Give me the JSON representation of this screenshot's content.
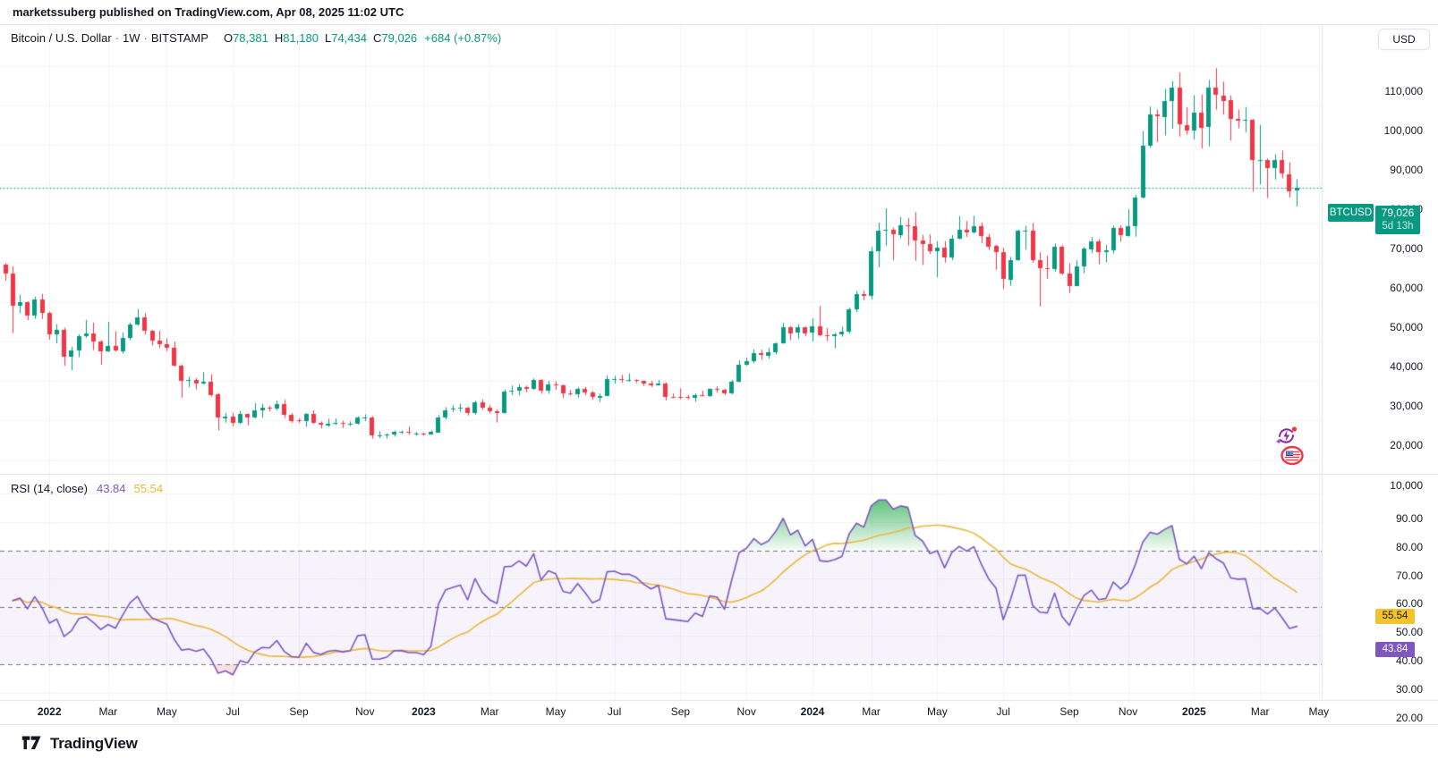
{
  "publish_bar": {
    "text": "marketssuberg published on TradingView.com, Apr 08, 2025 11:02 UTC"
  },
  "legend": {
    "symbol": "Bitcoin / U.S. Dollar",
    "separator": "·",
    "interval": "1W",
    "exchange": "BITSTAMP",
    "o_label": "O",
    "o_value": "78,381",
    "h_label": "H",
    "h_value": "81,180",
    "l_label": "L",
    "l_value": "74,434",
    "c_label": "C",
    "c_value": "79,026",
    "change": "+684 (+0.87%)"
  },
  "rsi_legend": {
    "title": "RSI (14, close)",
    "value": "43.84",
    "ma_value": "55.54"
  },
  "price_axis": {
    "currency_button": "USD",
    "tick_values": [
      110000,
      100000,
      90000,
      80000,
      70000,
      60000,
      50000,
      40000,
      30000,
      20000,
      10000
    ],
    "tick_labels": [
      "110,000",
      "100,000",
      "90,000",
      "80,000",
      "70,000",
      "60,000",
      "50,000",
      "40,000",
      "30,000",
      "20,000",
      "10,000"
    ],
    "symbol_tag": "BTCUSD",
    "last_price_label": "79,026",
    "countdown": "5d 13h"
  },
  "rsi_axis": {
    "tick_values": [
      90,
      80,
      70,
      60,
      50,
      40,
      30,
      20
    ],
    "tick_labels": [
      "90.00",
      "80.00",
      "70.00",
      "60.00",
      "50.00",
      "40.00",
      "30.00",
      "20.00"
    ],
    "value_badge": "43.84",
    "ma_badge": "55.54"
  },
  "time_axis": {
    "labels": [
      {
        "text": "2022",
        "week": 6,
        "year": true
      },
      {
        "text": "Mar",
        "week": 14
      },
      {
        "text": "May",
        "week": 22
      },
      {
        "text": "Jul",
        "week": 31
      },
      {
        "text": "Sep",
        "week": 40
      },
      {
        "text": "Nov",
        "week": 49
      },
      {
        "text": "2023",
        "week": 57,
        "year": true
      },
      {
        "text": "Mar",
        "week": 66
      },
      {
        "text": "May",
        "week": 75
      },
      {
        "text": "Jul",
        "week": 83
      },
      {
        "text": "Sep",
        "week": 92
      },
      {
        "text": "Nov",
        "week": 101
      },
      {
        "text": "2024",
        "week": 110,
        "year": true
      },
      {
        "text": "Mar",
        "week": 118
      },
      {
        "text": "May",
        "week": 127
      },
      {
        "text": "Jul",
        "week": 136
      },
      {
        "text": "Sep",
        "week": 145
      },
      {
        "text": "Nov",
        "week": 153
      },
      {
        "text": "2025",
        "week": 162,
        "year": true
      },
      {
        "text": "Mar",
        "week": 171
      },
      {
        "text": "May",
        "week": 179
      }
    ]
  },
  "footer": {
    "brand": "TradingView"
  },
  "colors": {
    "up": "#089981",
    "down": "#f23645",
    "text": "#131722",
    "border": "#e0e3eb",
    "grid": "#f0f3fa",
    "rsi_line": "#7e57c2",
    "rsi_ma_line": "#eab839",
    "rsi_band_fill": "rgba(126,87,194,0.07)",
    "band_dash": "#70737e",
    "overbought_fill": "#22ab48",
    "oversold_fill": "rgba(242,54,69,0.16)",
    "last_price_line": "#089981"
  },
  "chart_data": {
    "type": "candlestick",
    "title": "Bitcoin / U.S. Dollar",
    "symbol": "BTCUSD",
    "exchange": "BITSTAMP",
    "interval": "1W",
    "quote_currency": "USD",
    "start_week": "2021-11-22",
    "last_bar": {
      "open": 78381,
      "high": 81180,
      "low": 74434,
      "close": 79026,
      "change": "+684 (+0.87%)"
    },
    "y_axis_range": [
      10000,
      110000
    ],
    "grid": true,
    "candles_ohlc_thousands": [
      [
        59.6,
        59.8,
        55.6,
        57.3
      ],
      [
        57.3,
        59.1,
        42.3,
        49.2
      ],
      [
        49.2,
        51.9,
        47.3,
        50.1
      ],
      [
        50.1,
        50.2,
        45.6,
        46.7
      ],
      [
        46.7,
        51.4,
        45.9,
        50.8
      ],
      [
        50.8,
        52.1,
        45.9,
        47.3
      ],
      [
        47.3,
        47.6,
        40.6,
        41.9
      ],
      [
        41.9,
        44.4,
        39.7,
        43.1
      ],
      [
        43.1,
        43.5,
        34.0,
        36.3
      ],
      [
        36.3,
        38.7,
        32.9,
        37.9
      ],
      [
        37.9,
        41.8,
        36.2,
        41.5
      ],
      [
        41.5,
        45.5,
        41.1,
        42.1
      ],
      [
        42.1,
        44.8,
        38.0,
        40.1
      ],
      [
        40.1,
        40.3,
        34.3,
        37.7
      ],
      [
        37.7,
        45.0,
        37.5,
        39.0
      ],
      [
        39.0,
        42.6,
        37.6,
        37.8
      ],
      [
        37.8,
        42.3,
        37.1,
        41.1
      ],
      [
        41.1,
        44.8,
        40.5,
        44.5
      ],
      [
        44.5,
        48.2,
        44.2,
        46.3
      ],
      [
        46.3,
        47.2,
        41.9,
        42.8
      ],
      [
        42.8,
        42.9,
        39.2,
        40.4
      ],
      [
        40.4,
        42.7,
        38.5,
        39.5
      ],
      [
        39.5,
        40.8,
        37.7,
        38.6
      ],
      [
        38.6,
        40.0,
        33.8,
        34.0
      ],
      [
        34.0,
        34.2,
        25.9,
        30.1
      ],
      [
        30.1,
        31.1,
        28.6,
        30.3
      ],
      [
        30.3,
        30.7,
        28.0,
        29.5
      ],
      [
        29.5,
        32.2,
        29.3,
        29.9
      ],
      [
        29.9,
        31.7,
        26.2,
        26.6
      ],
      [
        26.6,
        26.9,
        17.6,
        20.6
      ],
      [
        20.6,
        21.9,
        19.6,
        21.0
      ],
      [
        21.0,
        21.9,
        18.6,
        19.3
      ],
      [
        19.3,
        22.4,
        19.2,
        21.6
      ],
      [
        21.6,
        21.7,
        18.9,
        20.8
      ],
      [
        20.8,
        24.3,
        20.7,
        22.6
      ],
      [
        22.6,
        24.2,
        20.8,
        23.3
      ],
      [
        23.3,
        23.6,
        22.4,
        23.2
      ],
      [
        23.2,
        25.0,
        22.7,
        24.3
      ],
      [
        24.3,
        25.2,
        20.8,
        21.5
      ],
      [
        21.5,
        21.8,
        19.5,
        20.0
      ],
      [
        20.0,
        20.5,
        19.5,
        19.8
      ],
      [
        19.8,
        21.8,
        18.5,
        21.7
      ],
      [
        21.7,
        22.5,
        19.3,
        19.4
      ],
      [
        19.4,
        19.7,
        18.1,
        18.9
      ],
      [
        18.9,
        20.4,
        18.5,
        19.3
      ],
      [
        19.3,
        20.5,
        19.0,
        19.4
      ],
      [
        19.4,
        19.9,
        18.2,
        19.1
      ],
      [
        19.1,
        19.7,
        18.7,
        19.2
      ],
      [
        19.2,
        21.0,
        19.1,
        20.8
      ],
      [
        20.8,
        21.5,
        20.0,
        20.9
      ],
      [
        20.9,
        21.0,
        15.5,
        16.3
      ],
      [
        16.3,
        17.2,
        15.6,
        16.3
      ],
      [
        16.3,
        16.7,
        15.5,
        16.5
      ],
      [
        16.5,
        17.4,
        16.0,
        17.1
      ],
      [
        17.1,
        17.4,
        16.7,
        17.1
      ],
      [
        17.1,
        18.4,
        16.5,
        16.8
      ],
      [
        16.8,
        17.0,
        16.3,
        16.8
      ],
      [
        16.8,
        16.8,
        16.3,
        16.5
      ],
      [
        16.5,
        17.4,
        16.5,
        17.1
      ],
      [
        17.1,
        21.3,
        17.1,
        20.9
      ],
      [
        20.9,
        23.3,
        20.4,
        22.7
      ],
      [
        22.7,
        23.8,
        22.3,
        23.0
      ],
      [
        23.0,
        24.2,
        22.3,
        23.3
      ],
      [
        23.3,
        23.4,
        21.4,
        21.9
      ],
      [
        21.9,
        25.0,
        21.6,
        24.6
      ],
      [
        24.6,
        25.3,
        22.8,
        23.2
      ],
      [
        23.2,
        23.9,
        22.0,
        22.4
      ],
      [
        22.4,
        22.7,
        19.6,
        22.0
      ],
      [
        22.0,
        27.8,
        21.9,
        27.4
      ],
      [
        27.4,
        28.8,
        26.6,
        27.5
      ],
      [
        27.5,
        29.2,
        26.5,
        28.5
      ],
      [
        28.5,
        28.8,
        27.3,
        28.0
      ],
      [
        28.0,
        30.6,
        27.9,
        30.3
      ],
      [
        30.3,
        30.4,
        26.9,
        27.6
      ],
      [
        27.6,
        30.0,
        26.9,
        29.2
      ],
      [
        29.2,
        29.9,
        27.9,
        28.9
      ],
      [
        28.9,
        29.1,
        25.8,
        26.9
      ],
      [
        26.9,
        27.7,
        26.4,
        26.7
      ],
      [
        26.7,
        28.4,
        25.9,
        28.1
      ],
      [
        28.1,
        28.5,
        26.5,
        27.1
      ],
      [
        27.1,
        27.4,
        25.4,
        25.9
      ],
      [
        25.9,
        26.8,
        24.8,
        26.3
      ],
      [
        26.3,
        31.4,
        26.3,
        30.5
      ],
      [
        30.5,
        31.3,
        29.5,
        30.6
      ],
      [
        30.6,
        31.5,
        29.7,
        30.3
      ],
      [
        30.3,
        31.9,
        30.0,
        30.3
      ],
      [
        30.3,
        30.4,
        29.6,
        30.0
      ],
      [
        30.0,
        30.1,
        28.9,
        29.4
      ],
      [
        29.4,
        30.0,
        28.6,
        29.0
      ],
      [
        29.0,
        30.2,
        29.0,
        29.4
      ],
      [
        29.4,
        29.6,
        25.2,
        26.1
      ],
      [
        26.1,
        26.8,
        25.8,
        26.0
      ],
      [
        26.0,
        28.1,
        25.5,
        25.9
      ],
      [
        25.9,
        26.4,
        25.4,
        25.8
      ],
      [
        25.8,
        26.8,
        24.9,
        26.5
      ],
      [
        26.5,
        27.5,
        26.2,
        26.2
      ],
      [
        26.2,
        28.1,
        26.1,
        28.0
      ],
      [
        28.0,
        28.6,
        27.2,
        27.9
      ],
      [
        27.9,
        28.0,
        26.5,
        26.9
      ],
      [
        26.9,
        30.3,
        26.8,
        29.9
      ],
      [
        29.9,
        35.2,
        29.8,
        34.1
      ],
      [
        34.1,
        35.9,
        34.0,
        35.0
      ],
      [
        35.0,
        38.0,
        34.7,
        37.1
      ],
      [
        37.1,
        37.9,
        35.5,
        36.6
      ],
      [
        36.6,
        38.4,
        35.8,
        37.4
      ],
      [
        37.4,
        39.7,
        36.9,
        39.7
      ],
      [
        39.7,
        44.7,
        39.6,
        43.8
      ],
      [
        43.8,
        43.9,
        40.5,
        42.3
      ],
      [
        42.3,
        44.4,
        40.8,
        43.7
      ],
      [
        43.7,
        43.8,
        41.5,
        42.2
      ],
      [
        42.2,
        45.9,
        40.2,
        43.9
      ],
      [
        43.9,
        49.0,
        41.5,
        41.7
      ],
      [
        41.7,
        43.4,
        40.3,
        41.6
      ],
      [
        41.6,
        42.2,
        38.5,
        42.0
      ],
      [
        42.0,
        43.8,
        41.4,
        42.6
      ],
      [
        42.6,
        48.6,
        42.2,
        48.3
      ],
      [
        48.3,
        52.8,
        47.6,
        52.1
      ],
      [
        52.1,
        52.9,
        50.6,
        51.7
      ],
      [
        51.7,
        64.0,
        50.9,
        63.1
      ],
      [
        63.1,
        70.2,
        59.0,
        68.3
      ],
      [
        68.3,
        73.8,
        64.5,
        68.4
      ],
      [
        68.4,
        68.9,
        60.8,
        67.2
      ],
      [
        67.2,
        71.6,
        66.4,
        69.6
      ],
      [
        69.6,
        71.3,
        64.5,
        69.4
      ],
      [
        69.4,
        72.8,
        60.7,
        65.7
      ],
      [
        65.7,
        67.1,
        59.6,
        64.9
      ],
      [
        64.9,
        67.2,
        62.4,
        63.1
      ],
      [
        63.1,
        65.5,
        56.5,
        64.0
      ],
      [
        64.0,
        65.5,
        60.2,
        61.5
      ],
      [
        61.5,
        67.0,
        60.8,
        66.3
      ],
      [
        66.3,
        71.9,
        66.1,
        68.5
      ],
      [
        68.5,
        70.6,
        66.7,
        67.8
      ],
      [
        67.8,
        71.9,
        67.6,
        69.3
      ],
      [
        69.3,
        70.2,
        65.1,
        66.7
      ],
      [
        66.7,
        67.3,
        63.4,
        64.3
      ],
      [
        64.3,
        64.5,
        58.4,
        62.7
      ],
      [
        62.7,
        63.8,
        53.5,
        55.9
      ],
      [
        55.9,
        61.5,
        54.3,
        60.8
      ],
      [
        60.8,
        68.4,
        60.7,
        68.2
      ],
      [
        68.2,
        69.4,
        63.5,
        68.3
      ],
      [
        68.3,
        70.1,
        60.2,
        60.7
      ],
      [
        60.7,
        62.7,
        49.1,
        58.7
      ],
      [
        58.7,
        61.8,
        56.1,
        58.5
      ],
      [
        58.5,
        64.9,
        57.9,
        64.2
      ],
      [
        64.2,
        64.5,
        57.1,
        57.3
      ],
      [
        57.3,
        59.8,
        52.5,
        54.2
      ],
      [
        54.2,
        60.6,
        54.2,
        59.1
      ],
      [
        59.1,
        64.0,
        57.5,
        63.6
      ],
      [
        63.6,
        66.5,
        62.6,
        65.6
      ],
      [
        65.6,
        66.0,
        59.8,
        62.8
      ],
      [
        62.8,
        64.5,
        60.3,
        63.2
      ],
      [
        63.2,
        69.4,
        62.5,
        68.9
      ],
      [
        68.9,
        69.5,
        65.5,
        67.0
      ],
      [
        67.0,
        73.6,
        66.8,
        69.4
      ],
      [
        69.4,
        77.2,
        66.8,
        76.7
      ],
      [
        76.7,
        93.4,
        76.5,
        89.8
      ],
      [
        89.8,
        99.6,
        89.4,
        97.7
      ],
      [
        97.7,
        98.9,
        90.8,
        97.2
      ],
      [
        97.2,
        104.1,
        92.5,
        101.2
      ],
      [
        101.2,
        106.1,
        94.2,
        104.5
      ],
      [
        104.5,
        108.3,
        92.2,
        95.1
      ],
      [
        95.1,
        99.5,
        92.7,
        93.7
      ],
      [
        93.7,
        102.5,
        91.5,
        98.3
      ],
      [
        98.3,
        102.7,
        89.2,
        94.5
      ],
      [
        94.5,
        106.4,
        89.7,
        104.5
      ],
      [
        104.5,
        109.4,
        99.0,
        102.6
      ],
      [
        102.6,
        106.0,
        97.8,
        101.3
      ],
      [
        101.3,
        102.5,
        91.2,
        96.5
      ],
      [
        96.5,
        98.9,
        94.3,
        96.1
      ],
      [
        96.1,
        99.5,
        93.3,
        96.3
      ],
      [
        96.3,
        96.5,
        78.2,
        86.0
      ],
      [
        86.0,
        95.0,
        80.1,
        86.1
      ],
      [
        86.1,
        86.5,
        76.6,
        84.0
      ],
      [
        84.0,
        87.5,
        81.3,
        86.1
      ],
      [
        86.1,
        88.5,
        81.6,
        82.6
      ],
      [
        82.6,
        85.5,
        76.7,
        78.4
      ],
      [
        78.381,
        81.18,
        74.434,
        79.026
      ]
    ],
    "rsi": {
      "length": 14,
      "source": "close",
      "overbought": 70,
      "middle": 50,
      "oversold": 30,
      "last_value": 43.84,
      "ma_last_value": 55.54
    }
  }
}
